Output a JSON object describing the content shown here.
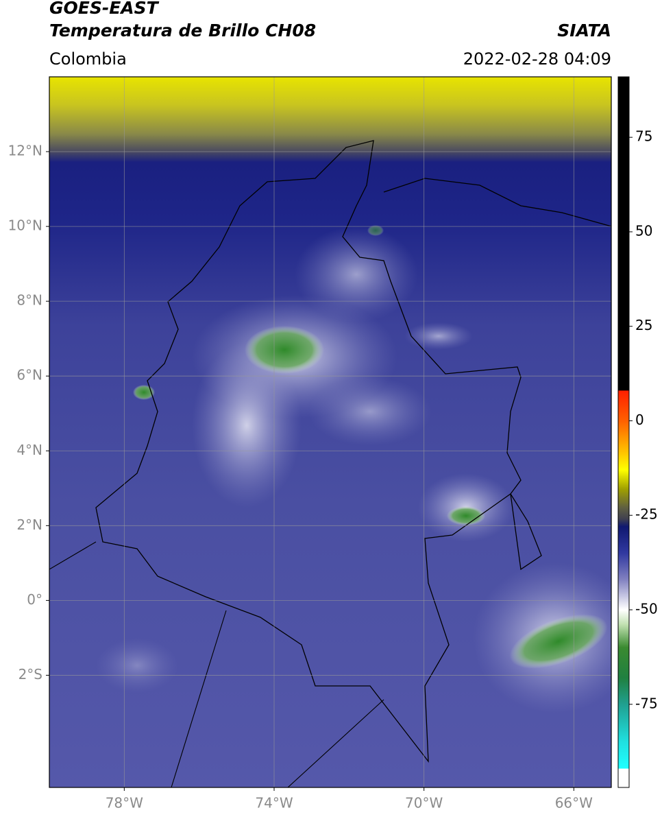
{
  "header": {
    "title": "GOES-EAST",
    "subtitle": "Temperatura de Brillo CH08",
    "source": "SIATA",
    "region": "Colombia",
    "datetime": "2022-02-28 04:09"
  },
  "map": {
    "xlim": [
      -80,
      -65
    ],
    "ylim": [
      -5,
      14
    ],
    "xticks": [
      {
        "value": -78,
        "label": "78°W"
      },
      {
        "value": -74,
        "label": "74°W"
      },
      {
        "value": -70,
        "label": "70°W"
      },
      {
        "value": -66,
        "label": "66°W"
      }
    ],
    "yticks": [
      {
        "value": 12,
        "label": "12°N"
      },
      {
        "value": 10,
        "label": "10°N"
      },
      {
        "value": 8,
        "label": "8°N"
      },
      {
        "value": 6,
        "label": "6°N"
      },
      {
        "value": 4,
        "label": "4°N"
      },
      {
        "value": 2,
        "label": "2°N"
      },
      {
        "value": 0,
        "label": "0°"
      },
      {
        "value": -2,
        "label": "2°S"
      }
    ],
    "grid": true
  },
  "colorbar": {
    "lim": [
      -97,
      91
    ],
    "ticks": [
      75,
      50,
      25,
      0,
      -25,
      -50,
      -75
    ]
  }
}
